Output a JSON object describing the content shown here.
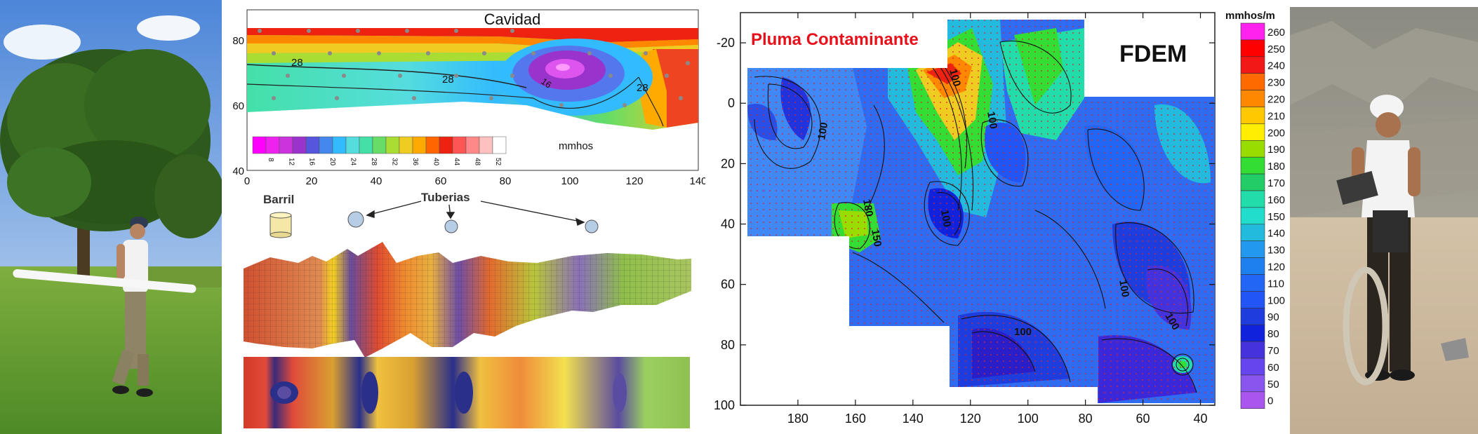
{
  "colors": {
    "background": "#ffffff",
    "title_red": "#e8101a",
    "marker_gray": "#8a8a8a"
  },
  "icons": [
    "barrel-icon",
    "pipe-icon",
    "person-figure",
    "em-instrument-coil"
  ],
  "photo_left": {
    "description_icon": "field-operator-with-boom-instrument"
  },
  "cavity_map": {
    "title": "Cavidad",
    "unit": "mmhos",
    "y_ticks": [
      "80",
      "60",
      "40"
    ],
    "x_ticks": [
      "0",
      "20",
      "40",
      "60",
      "80",
      "100",
      "120",
      "140"
    ],
    "contour_labels": [
      "28",
      "28",
      "28",
      "16"
    ],
    "scale_ticks": [
      "8",
      "12",
      "16",
      "20",
      "24",
      "28",
      "32",
      "36",
      "40",
      "44",
      "48",
      "52"
    ],
    "scale_colors": [
      "#ff00ff",
      "#ee22ee",
      "#cc33dd",
      "#9933cc",
      "#5555dd",
      "#4488ee",
      "#33bbff",
      "#55dddd",
      "#44e0a8",
      "#66dd66",
      "#aadd33",
      "#eecc22",
      "#ffaa00",
      "#ff6600",
      "#ee2211",
      "#ff5555",
      "#ff8888",
      "#ffc0c0",
      "#ffffff"
    ]
  },
  "survey_3d": {
    "barrel_label": "Barril",
    "pipes_label": "Tuberias"
  },
  "chart_data": {
    "type": "heatmap",
    "title": "Pluma Contaminante",
    "method_label": "FDEM",
    "unit": "mmhos/m",
    "x_ticks": [
      "180",
      "160",
      "140",
      "120",
      "100",
      "80",
      "60",
      "40"
    ],
    "y_ticks": [
      "-20",
      "0",
      "20",
      "40",
      "60",
      "80",
      "100"
    ],
    "xlim": [
      200,
      35
    ],
    "ylim": [
      -30,
      100
    ],
    "contour_labels": [
      "100",
      "180",
      "150",
      "100",
      "100",
      "100",
      "100",
      "100",
      "100"
    ],
    "scale_values": [
      "260",
      "250",
      "240",
      "230",
      "220",
      "210",
      "200",
      "190",
      "180",
      "170",
      "160",
      "150",
      "140",
      "130",
      "120",
      "110",
      "100",
      "90",
      "80",
      "70",
      "60",
      "50",
      "0"
    ],
    "scale_colors": [
      "#ff22ee",
      "#ff0000",
      "#f21818",
      "#ff6a00",
      "#ff8800",
      "#ffc800",
      "#ffee00",
      "#99dd00",
      "#33dd33",
      "#22cc66",
      "#22ddaa",
      "#22ddcc",
      "#22bbdd",
      "#2299ee",
      "#1e80ee",
      "#2266f5",
      "#2255f5",
      "#1f3ddd",
      "#1122dd",
      "#4433dd",
      "#6644ee",
      "#8855ee",
      "#aa55ee"
    ]
  },
  "photo_right": {
    "description_icon": "field-operator-with-em-coil"
  }
}
